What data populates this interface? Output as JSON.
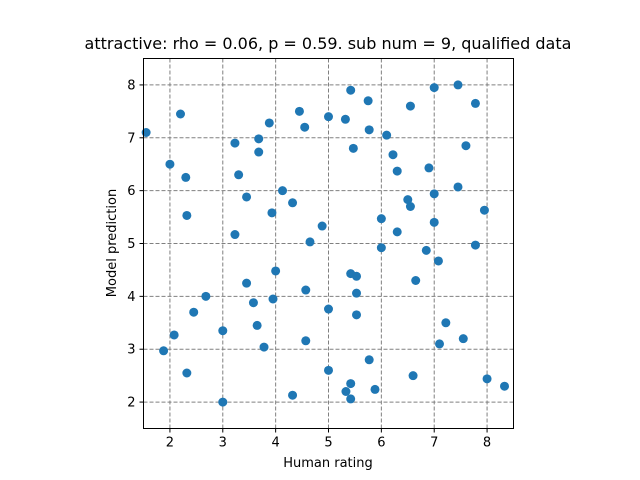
{
  "chart_data": {
    "type": "scatter",
    "title": "attractive: rho = 0.06, p = 0.59. sub num = 9, qualified data",
    "xlabel": "Human rating",
    "ylabel": "Model prediction",
    "xlim": [
      1.5,
      8.5
    ],
    "ylim": [
      1.5,
      8.5
    ],
    "xticks": [
      2,
      3,
      4,
      5,
      6,
      7,
      8
    ],
    "yticks": [
      2,
      3,
      4,
      5,
      6,
      7,
      8
    ],
    "grid": true,
    "color": "#1f77b4",
    "points": [
      [
        1.55,
        7.1
      ],
      [
        1.88,
        2.97
      ],
      [
        2.0,
        6.5
      ],
      [
        2.08,
        3.27
      ],
      [
        2.2,
        7.45
      ],
      [
        2.3,
        6.25
      ],
      [
        2.32,
        5.53
      ],
      [
        2.32,
        2.55
      ],
      [
        2.45,
        3.7
      ],
      [
        2.68,
        4.0
      ],
      [
        3.0,
        3.35
      ],
      [
        3.0,
        2.0
      ],
      [
        3.23,
        6.9
      ],
      [
        3.23,
        5.17
      ],
      [
        3.3,
        6.3
      ],
      [
        3.45,
        5.88
      ],
      [
        3.45,
        4.25
      ],
      [
        3.58,
        3.88
      ],
      [
        3.65,
        3.45
      ],
      [
        3.68,
        6.98
      ],
      [
        3.68,
        6.73
      ],
      [
        3.78,
        3.04
      ],
      [
        3.88,
        7.28
      ],
      [
        3.93,
        5.58
      ],
      [
        3.95,
        3.95
      ],
      [
        4.0,
        4.48
      ],
      [
        4.13,
        6.0
      ],
      [
        4.32,
        5.77
      ],
      [
        4.32,
        2.13
      ],
      [
        4.45,
        7.5
      ],
      [
        4.55,
        7.2
      ],
      [
        4.57,
        4.12
      ],
      [
        4.57,
        3.16
      ],
      [
        4.65,
        5.03
      ],
      [
        4.88,
        5.33
      ],
      [
        5.0,
        7.4
      ],
      [
        5.0,
        3.76
      ],
      [
        5.0,
        2.6
      ],
      [
        5.32,
        7.35
      ],
      [
        5.33,
        2.2
      ],
      [
        5.42,
        7.9
      ],
      [
        5.42,
        4.43
      ],
      [
        5.42,
        2.35
      ],
      [
        5.42,
        2.06
      ],
      [
        5.47,
        6.8
      ],
      [
        5.53,
        4.38
      ],
      [
        5.53,
        4.06
      ],
      [
        5.53,
        3.65
      ],
      [
        5.75,
        7.7
      ],
      [
        5.77,
        7.15
      ],
      [
        5.77,
        2.8
      ],
      [
        5.88,
        2.24
      ],
      [
        6.0,
        5.47
      ],
      [
        6.0,
        4.92
      ],
      [
        6.1,
        7.05
      ],
      [
        6.22,
        6.68
      ],
      [
        6.3,
        6.37
      ],
      [
        6.3,
        5.22
      ],
      [
        6.5,
        5.83
      ],
      [
        6.55,
        7.6
      ],
      [
        6.55,
        5.7
      ],
      [
        6.6,
        2.5
      ],
      [
        6.65,
        4.3
      ],
      [
        6.85,
        4.87
      ],
      [
        6.9,
        6.43
      ],
      [
        7.0,
        7.95
      ],
      [
        7.0,
        5.94
      ],
      [
        7.0,
        5.4
      ],
      [
        7.08,
        4.67
      ],
      [
        7.1,
        3.1
      ],
      [
        7.22,
        3.5
      ],
      [
        7.45,
        8.0
      ],
      [
        7.45,
        6.07
      ],
      [
        7.55,
        3.2
      ],
      [
        7.6,
        6.85
      ],
      [
        7.78,
        7.65
      ],
      [
        7.78,
        4.97
      ],
      [
        7.95,
        5.63
      ],
      [
        8.0,
        2.44
      ],
      [
        8.33,
        2.3
      ]
    ]
  }
}
